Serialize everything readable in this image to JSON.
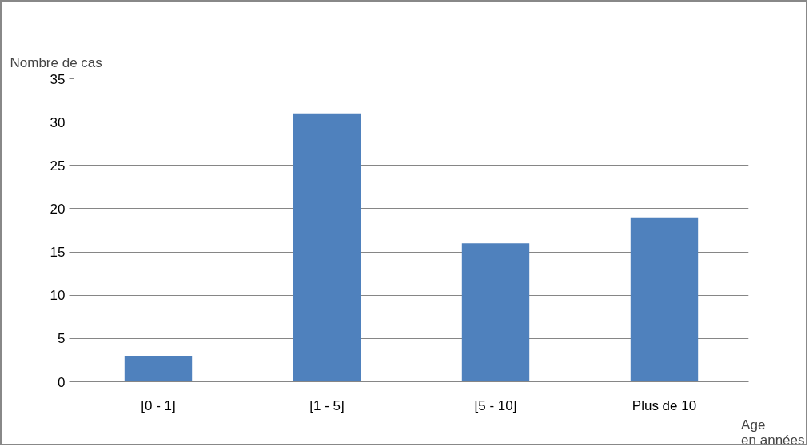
{
  "chart_data": {
    "type": "bar",
    "ylabel": "Nombre de cas",
    "xlabel": "Age\nen années",
    "categories": [
      "[0 - 1]",
      "[1 - 5]",
      "[5 - 10]",
      "Plus de 10"
    ],
    "values": [
      3,
      31,
      16,
      19
    ],
    "color": "#4f81bd",
    "ylim": [
      0,
      35
    ],
    "yticks": [
      0,
      5,
      10,
      15,
      20,
      25,
      30,
      35
    ],
    "grid": "y"
  }
}
